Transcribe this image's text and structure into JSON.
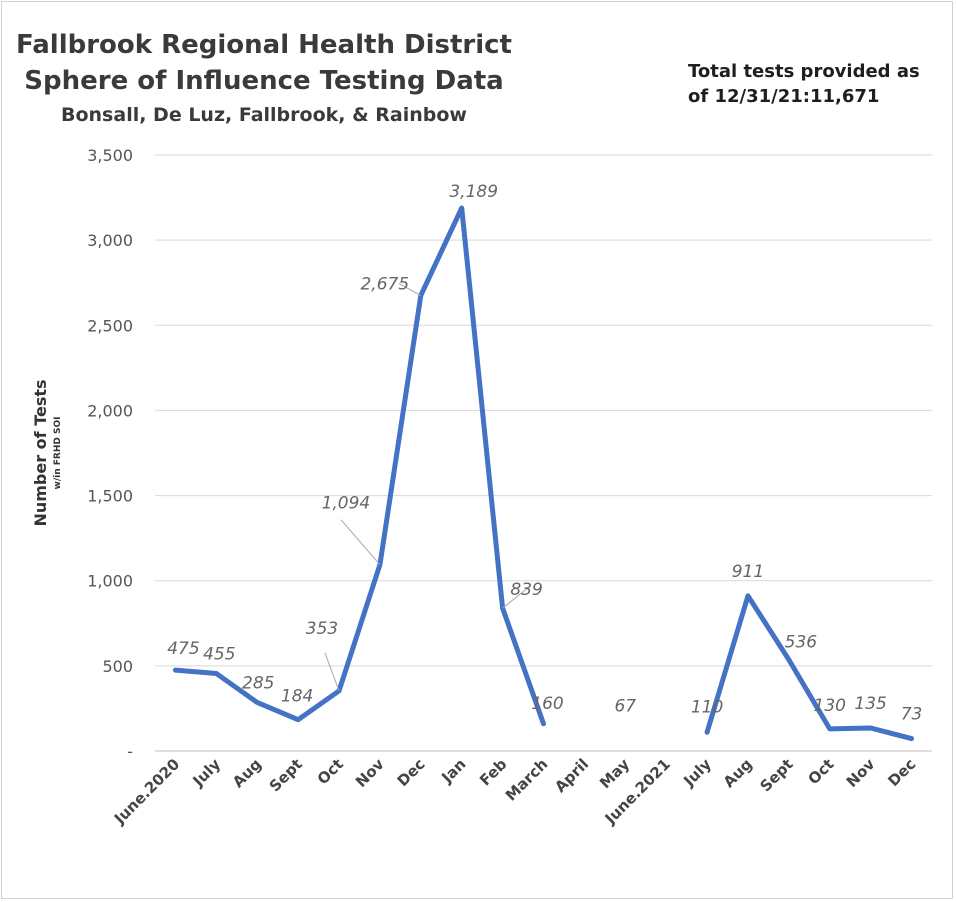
{
  "chart_data": {
    "type": "line",
    "title": "Fallbrook Regional Health District",
    "subtitle": "Sphere of Influence Testing Data",
    "subtitle2": "Bonsall, De Luz, Fallbrook, & Rainbow",
    "annotation": "Total tests provided as of 12/31/21:11,671",
    "ylabel": "Number of Tests",
    "ylabel_sub": "w/in FRHD SOI",
    "xlabel": "",
    "ylim": [
      0,
      3500
    ],
    "yticks": [
      0,
      500,
      1000,
      1500,
      2000,
      2500,
      3000,
      3500
    ],
    "ytick_labels": [
      "-",
      "500",
      "1,000",
      "1,500",
      "2,000",
      "2,500",
      "3,000",
      "3,500"
    ],
    "grid": true,
    "line_color": "#4472C4",
    "categories": [
      "June.2020",
      "July",
      "Aug",
      "Sept",
      "Oct",
      "Nov",
      "Dec",
      "Jan",
      "Feb",
      "March",
      "April",
      "May",
      "June.2021",
      "July",
      "Aug",
      "Sept",
      "Oct",
      "Nov",
      "Dec"
    ],
    "values": [
      475,
      455,
      285,
      184,
      353,
      1094,
      2675,
      3189,
      839,
      160,
      null,
      67,
      null,
      110,
      911,
      536,
      130,
      135,
      73
    ],
    "data_labels": [
      "475",
      "455",
      "285",
      "184",
      "353",
      "1,094",
      "2,675",
      "3,189",
      "839",
      "160",
      "",
      "67",
      "",
      "110",
      "911",
      "536",
      "130",
      "135",
      "73"
    ]
  }
}
